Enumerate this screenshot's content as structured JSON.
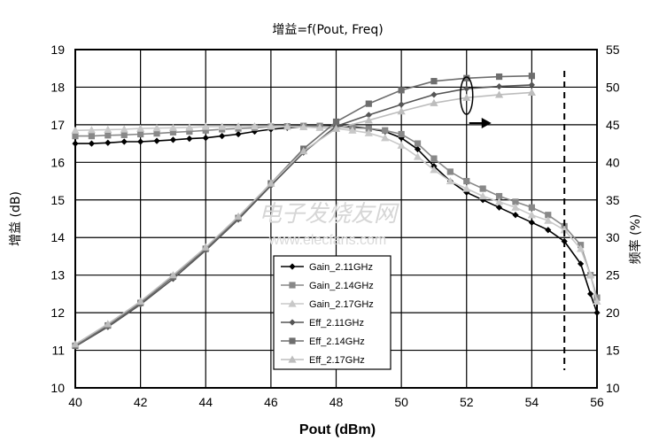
{
  "chart_data": {
    "type": "line",
    "title": "增益=f(Pout, Freq)",
    "xlabel": "Pout (dBm)",
    "ylabel": "增益 (dB)",
    "y2label": "频率 (%)",
    "xlim": [
      40,
      56
    ],
    "ylim": [
      10,
      19
    ],
    "y2lim": [
      10,
      55
    ],
    "x_ticks": [
      "40",
      "42",
      "44",
      "46",
      "48",
      "50",
      "52",
      "54",
      "56"
    ],
    "y_ticks": [
      "10",
      "11",
      "12",
      "13",
      "14",
      "15",
      "16",
      "17",
      "18",
      "19"
    ],
    "y2_ticks": [
      "10",
      "15",
      "20",
      "25",
      "30",
      "35",
      "40",
      "45",
      "50",
      "55"
    ],
    "grid": true,
    "legend_position": "bottom-center",
    "watermark": [
      "电子发烧友网",
      "www.elecfans.com"
    ],
    "series": [
      {
        "name": "Gain_2.11GHz",
        "axis": "left",
        "marker": "diamond",
        "color": "#000000",
        "x": [
          40,
          40.5,
          41,
          41.5,
          42,
          42.5,
          43,
          43.5,
          44,
          44.5,
          45,
          45.5,
          46,
          46.5,
          47,
          47.5,
          48,
          48.5,
          49,
          49.5,
          50,
          50.5,
          51,
          51.5,
          52,
          52.5,
          53,
          53.5,
          54,
          54.5,
          55,
          55.5,
          55.8,
          56
        ],
        "y": [
          16.5,
          16.5,
          16.52,
          16.55,
          16.55,
          16.57,
          16.6,
          16.63,
          16.65,
          16.7,
          16.75,
          16.82,
          16.88,
          16.92,
          16.95,
          16.97,
          16.97,
          16.95,
          16.9,
          16.82,
          16.65,
          16.35,
          15.9,
          15.5,
          15.2,
          15.0,
          14.8,
          14.6,
          14.4,
          14.2,
          13.9,
          13.3,
          12.5,
          12.0
        ]
      },
      {
        "name": "Gain_2.14GHz",
        "axis": "left",
        "marker": "square",
        "color": "#888888",
        "x": [
          40,
          40.5,
          41,
          41.5,
          42,
          42.5,
          43,
          43.5,
          44,
          44.5,
          45,
          45.5,
          46,
          46.5,
          47,
          47.5,
          48,
          48.5,
          49,
          49.5,
          50,
          50.5,
          51,
          51.5,
          52,
          52.5,
          53,
          53.5,
          54,
          54.5,
          55,
          55.5,
          55.8,
          56
        ],
        "y": [
          16.7,
          16.7,
          16.72,
          16.73,
          16.75,
          16.77,
          16.8,
          16.82,
          16.85,
          16.88,
          16.9,
          16.92,
          16.95,
          16.96,
          16.97,
          16.97,
          16.95,
          16.92,
          16.9,
          16.85,
          16.75,
          16.5,
          16.1,
          15.75,
          15.5,
          15.3,
          15.1,
          14.95,
          14.8,
          14.6,
          14.3,
          13.8,
          13.0,
          12.4
        ]
      },
      {
        "name": "Gain_2.17GHz",
        "axis": "left",
        "marker": "triangle",
        "color": "#c8c8c8",
        "x": [
          40,
          40.5,
          41,
          41.5,
          42,
          42.5,
          43,
          43.5,
          44,
          44.5,
          45,
          45.5,
          46,
          46.5,
          47,
          47.5,
          48,
          48.5,
          49,
          49.5,
          50,
          50.5,
          51,
          51.5,
          52,
          52.5,
          53,
          53.5,
          54,
          54.5,
          55,
          55.5,
          55.8,
          56
        ],
        "y": [
          16.85,
          16.86,
          16.87,
          16.88,
          16.9,
          16.91,
          16.92,
          16.93,
          16.95,
          16.95,
          16.96,
          16.96,
          16.96,
          16.95,
          16.94,
          16.92,
          16.9,
          16.85,
          16.78,
          16.65,
          16.45,
          16.15,
          15.8,
          15.5,
          15.3,
          15.1,
          14.95,
          14.8,
          14.6,
          14.45,
          14.2,
          13.7,
          13.0,
          12.3
        ]
      },
      {
        "name": "Eff_2.11GHz",
        "axis": "right",
        "marker": "diamond",
        "color": "#555555",
        "x": [
          40,
          41,
          42,
          43,
          44,
          45,
          46,
          47,
          48,
          49,
          50,
          51,
          52,
          53,
          54
        ],
        "y": [
          15.5,
          18.1,
          21.1,
          24.5,
          28.3,
          32.4,
          36.9,
          41.3,
          44.8,
          46.3,
          47.7,
          49.0,
          49.8,
          50.1,
          50.3
        ]
      },
      {
        "name": "Eff_2.14GHz",
        "axis": "right",
        "marker": "square",
        "color": "#6e6e6e",
        "x": [
          40,
          41,
          42,
          43,
          44,
          45,
          46,
          47,
          48,
          49,
          50,
          51,
          52,
          53,
          54
        ],
        "y": [
          15.6,
          18.3,
          21.3,
          24.8,
          28.5,
          32.6,
          37.2,
          41.8,
          45.4,
          47.8,
          49.6,
          50.8,
          51.2,
          51.4,
          51.5
        ]
      },
      {
        "name": "Eff_2.17GHz",
        "axis": "right",
        "marker": "triangle",
        "color": "#bdbdbd",
        "x": [
          40,
          41,
          42,
          43,
          44,
          45,
          46,
          47,
          48,
          49,
          50,
          51,
          52,
          53,
          54
        ],
        "y": [
          15.8,
          18.5,
          21.5,
          25.0,
          28.7,
          32.8,
          37.2,
          41.5,
          44.5,
          45.6,
          46.8,
          47.9,
          48.6,
          49.0,
          49.3
        ]
      }
    ]
  }
}
